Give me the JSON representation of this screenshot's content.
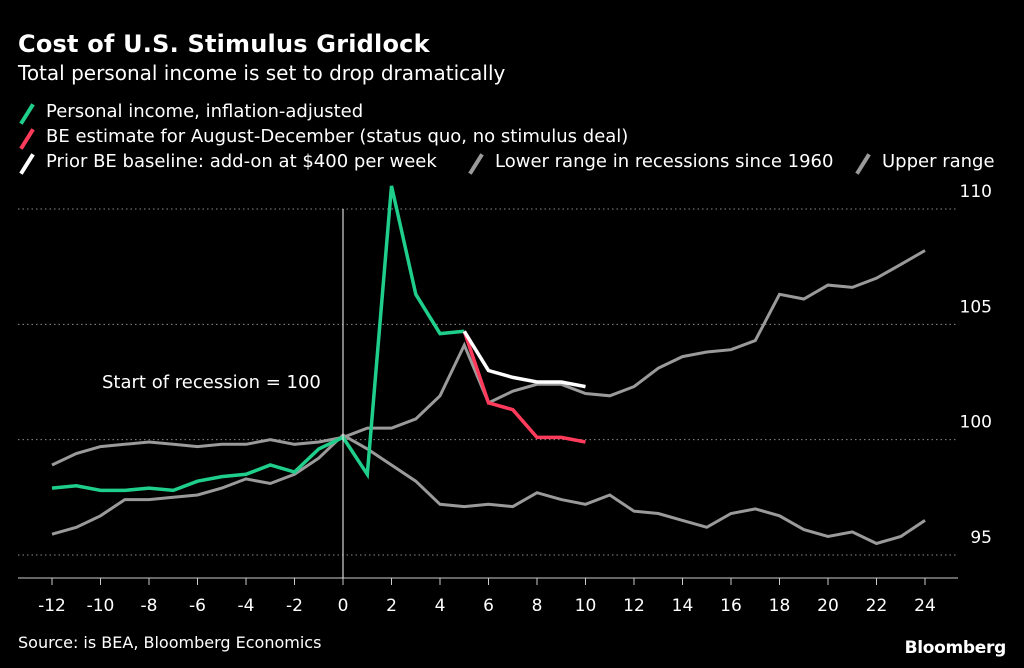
{
  "header": {
    "title": "Cost of U.S. Stimulus Gridlock",
    "subtitle": "Total personal income is set to drop dramatically"
  },
  "footer": {
    "source": "Source: is BEA, Bloomberg Economics",
    "brand": "Bloomberg"
  },
  "chart_data": {
    "type": "line",
    "title": "Cost of U.S. Stimulus Gridlock",
    "subtitle": "Total personal income is set to drop dramatically",
    "xlabel": "",
    "ylabel": "",
    "xlim": [
      -12,
      24
    ],
    "ylim": [
      95,
      110
    ],
    "x_ticks": [
      -12,
      -10,
      -8,
      -6,
      -4,
      -2,
      0,
      2,
      4,
      6,
      8,
      10,
      12,
      14,
      16,
      18,
      20,
      22,
      24
    ],
    "y_ticks": [
      95,
      100,
      105,
      110
    ],
    "grid": "horizontal dotted",
    "legend_position": "top",
    "annotation": "Start of recession = 100",
    "reference_line_x": 0,
    "series": [
      {
        "name": "Lower range in recessions since 1960",
        "color": "#9a9a9a",
        "x": [
          -12,
          -11,
          -10,
          -9,
          -8,
          -7,
          -6,
          -5,
          -4,
          -3,
          -2,
          -1,
          0,
          1,
          2,
          3,
          4,
          5,
          6,
          7,
          8,
          9,
          10,
          11,
          12,
          13,
          14,
          15,
          16,
          17,
          18,
          19,
          20,
          21,
          22,
          23,
          24
        ],
        "y": [
          95.9,
          96.2,
          96.7,
          97.4,
          97.4,
          97.5,
          97.6,
          97.9,
          98.3,
          98.1,
          98.5,
          99.2,
          100.2,
          99.6,
          98.9,
          98.2,
          97.2,
          97.1,
          97.2,
          97.1,
          97.7,
          97.4,
          97.2,
          97.6,
          96.9,
          96.8,
          96.5,
          96.2,
          96.8,
          97.0,
          96.7,
          96.1,
          95.8,
          96.0,
          95.5,
          95.8,
          96.5
        ]
      },
      {
        "name": "Upper range",
        "color": "#9a9a9a",
        "x": [
          -12,
          -11,
          -10,
          -9,
          -8,
          -7,
          -6,
          -5,
          -4,
          -3,
          -2,
          -1,
          0,
          1,
          2,
          3,
          4,
          5,
          6,
          7,
          8,
          9,
          10,
          11,
          12,
          13,
          14,
          15,
          16,
          17,
          18,
          19,
          20,
          21,
          22,
          23,
          24
        ],
        "y": [
          98.9,
          99.4,
          99.7,
          99.8,
          99.9,
          99.8,
          99.7,
          99.8,
          99.8,
          100.0,
          99.8,
          99.9,
          100.1,
          100.5,
          100.5,
          100.9,
          101.9,
          104.1,
          101.6,
          102.1,
          102.4,
          102.4,
          102.0,
          101.9,
          102.3,
          103.1,
          103.6,
          103.8,
          103.9,
          104.3,
          106.3,
          106.1,
          106.7,
          106.6,
          107.0,
          107.6,
          108.2
        ]
      },
      {
        "name": "Personal income, inflation-adjusted",
        "color": "#1fce8a",
        "x": [
          -12,
          -11,
          -10,
          -9,
          -8,
          -7,
          -6,
          -5,
          -4,
          -3,
          -2,
          -1,
          0,
          1,
          2,
          3,
          4,
          5
        ],
        "y": [
          97.9,
          98.0,
          97.8,
          97.8,
          97.9,
          97.8,
          98.2,
          98.4,
          98.5,
          98.9,
          98.6,
          99.6,
          100.1,
          98.5,
          111.0,
          106.3,
          104.6,
          104.7
        ]
      },
      {
        "name": "BE estimate for August-December (status quo, no stimulus deal)",
        "color": "#ff3b5c",
        "x": [
          5,
          6,
          7,
          8,
          9,
          10
        ],
        "y": [
          104.7,
          101.6,
          101.3,
          100.1,
          100.1,
          99.9
        ]
      },
      {
        "name": "Prior BE baseline: add-on at $400 per week",
        "color": "#ffffff",
        "x": [
          5,
          6,
          7,
          8,
          9,
          10
        ],
        "y": [
          104.7,
          103.0,
          102.7,
          102.5,
          102.5,
          102.3
        ]
      }
    ],
    "legend": [
      {
        "label": "Personal income, inflation-adjusted",
        "color": "#1fce8a"
      },
      {
        "label": "BE estimate for August-December (status quo, no stimulus deal)",
        "color": "#ff3b5c"
      },
      {
        "label": "Prior BE baseline: add-on at $400 per week",
        "color": "#ffffff"
      },
      {
        "label": "Lower range in recessions since 1960",
        "color": "#9a9a9a"
      },
      {
        "label": "Upper range",
        "color": "#9a9a9a"
      }
    ]
  }
}
